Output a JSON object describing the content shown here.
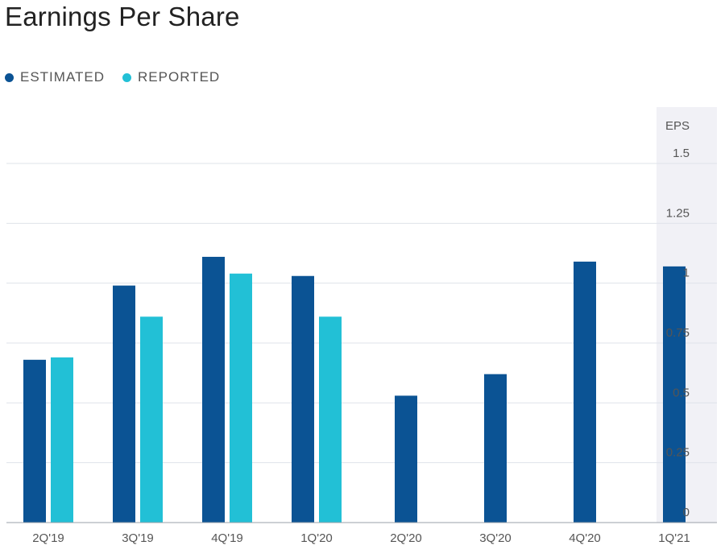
{
  "title": "Earnings Per Share",
  "legend": [
    {
      "label": "ESTIMATED",
      "color": "#0b5394"
    },
    {
      "label": "REPORTED",
      "color": "#22c0d6"
    }
  ],
  "chart_data": {
    "type": "bar",
    "title": "Earnings Per Share",
    "xlabel": "",
    "ylabel": "EPS",
    "ylim": [
      0,
      1.5
    ],
    "yticks": [
      0,
      0.25,
      0.5,
      0.75,
      1,
      1.25,
      1.5
    ],
    "ytick_labels": [
      "0",
      "0.25",
      "0.5",
      "0.75",
      "1",
      "1.25",
      "1.5"
    ],
    "grid": true,
    "legend_position": "top-left",
    "categories": [
      "2Q'19",
      "3Q'19",
      "4Q'19",
      "1Q'20",
      "2Q'20",
      "3Q'20",
      "4Q'20",
      "1Q'21"
    ],
    "series": [
      {
        "name": "ESTIMATED",
        "color": "#0b5394",
        "values": [
          0.68,
          0.99,
          1.11,
          1.03,
          0.53,
          0.62,
          1.09,
          1.07
        ]
      },
      {
        "name": "REPORTED",
        "color": "#22c0d6",
        "values": [
          0.69,
          0.86,
          1.04,
          0.86,
          null,
          null,
          null,
          null
        ]
      }
    ]
  }
}
